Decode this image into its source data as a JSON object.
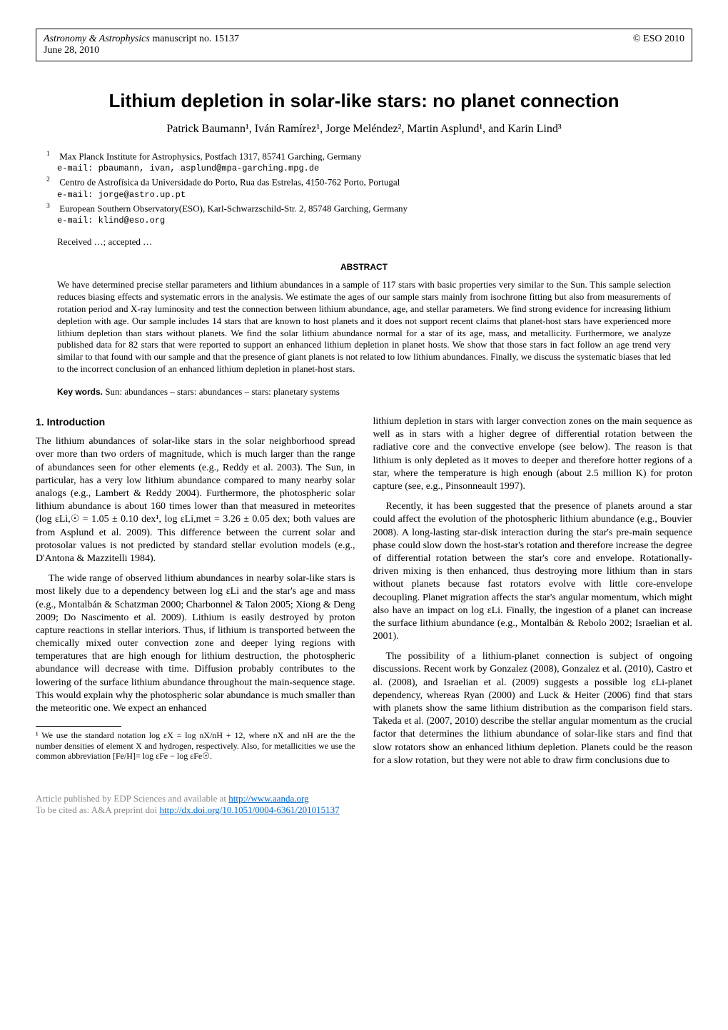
{
  "header": {
    "journal": "Astronomy & Astrophysics",
    "manuscript": " manuscript no. 15137",
    "date": "June 28, 2010",
    "copyright": "© ESO 2010"
  },
  "title": "Lithium depletion in solar-like stars: no planet connection",
  "authors": "Patrick Baumann¹, Iván Ramírez¹, Jorge Meléndez², Martin Asplund¹, and Karin Lind³",
  "affiliations": [
    {
      "num": "1",
      "text": "Max Planck Institute for Astrophysics, Postfach 1317, 85741 Garching, Germany",
      "email": "e-mail: pbaumann, ivan, asplund@mpa-garching.mpg.de"
    },
    {
      "num": "2",
      "text": "Centro de Astrofísica da Universidade do Porto, Rua das Estrelas, 4150-762 Porto, Portugal",
      "email": "e-mail: jorge@astro.up.pt"
    },
    {
      "num": "3",
      "text": "European Southern Observatory(ESO), Karl-Schwarzschild-Str. 2, 85748 Garching, Germany",
      "email": "e-mail: klind@eso.org"
    }
  ],
  "received": "Received …; accepted …",
  "abstract": {
    "header": "ABSTRACT",
    "text": "We have determined precise stellar parameters and lithium abundances in a sample of 117 stars with basic properties very similar to the Sun. This sample selection reduces biasing effects and systematic errors in the analysis. We estimate the ages of our sample stars mainly from isochrone fitting but also from measurements of rotation period and X-ray luminosity and test the connection between lithium abundance, age, and stellar parameters. We find strong evidence for increasing lithium depletion with age. Our sample includes 14 stars that are known to host planets and it does not support recent claims that planet-host stars have experienced more lithium depletion than stars without planets. We find the solar lithium abundance normal for a star of its age, mass, and metallicity. Furthermore, we analyze published data for 82 stars that were reported to support an enhanced lithium depletion in planet hosts. We show that those stars in fact follow an age trend very similar to that found with our sample and that the presence of giant planets is not related to low lithium abundances. Finally, we discuss the systematic biases that led to the incorrect conclusion of an enhanced lithium depletion in planet-host stars."
  },
  "keywords": {
    "label": "Key words.",
    "text": " Sun: abundances – stars: abundances – stars: planetary systems"
  },
  "section1": {
    "header": "1. Introduction",
    "p1": "The lithium abundances of solar-like stars in the solar neighborhood spread over more than two orders of magnitude, which is much larger than the range of abundances seen for other elements (e.g., Reddy et al. 2003). The Sun, in particular, has a very low lithium abundance compared to many nearby solar analogs (e.g., Lambert & Reddy 2004). Furthermore, the photospheric solar lithium abundance is about 160 times lower than that measured in meteorites (log εLi,☉ = 1.05 ± 0.10 dex¹, log εLi,met = 3.26 ± 0.05 dex; both values are from Asplund et al. 2009). This difference between the current solar and protosolar values is not predicted by standard stellar evolution models (e.g., D'Antona & Mazzitelli 1984).",
    "p2": "The wide range of observed lithium abundances in nearby solar-like stars is most likely due to a dependency between log εLi and the star's age and mass (e.g., Montalbán & Schatzman 2000; Charbonnel & Talon 2005; Xiong & Deng 2009; Do Nascimento et al. 2009). Lithium is easily destroyed by proton capture reactions in stellar interiors. Thus, if lithium is transported between the chemically mixed outer convection zone and deeper lying regions with temperatures that are high enough for lithium destruction, the photospheric abundance will decrease with time. Diffusion probably contributes to the lowering of the surface lithium abundance throughout the main-sequence stage. This would explain why the photospheric solar abundance is much smaller than the meteoritic one. We expect an enhanced",
    "p3": "lithium depletion in stars with larger convection zones on the main sequence as well as in stars with a higher degree of differential rotation between the radiative core and the convective envelope (see below). The reason is that lithium is only depleted as it moves to deeper and therefore hotter regions of a star, where the temperature is high enough (about 2.5 million K) for proton capture (see, e.g., Pinsonneault 1997).",
    "p4": "Recently, it has been suggested that the presence of planets around a star could affect the evolution of the photospheric lithium abundance (e.g., Bouvier 2008). A long-lasting star-disk interaction during the star's pre-main sequence phase could slow down the host-star's rotation and therefore increase the degree of differential rotation between the star's core and envelope. Rotationally-driven mixing is then enhanced, thus destroying more lithium than in stars without planets because fast rotators evolve with little core-envelope decoupling. Planet migration affects the star's angular momentum, which might also have an impact on log εLi. Finally, the ingestion of a planet can increase the surface lithium abundance (e.g., Montalbán & Rebolo 2002; Israelian et al. 2001).",
    "p5": "The possibility of a lithium-planet connection is subject of ongoing discussions. Recent work by Gonzalez (2008), Gonzalez et al. (2010), Castro et al. (2008), and Israelian et al. (2009) suggests a possible log εLi-planet dependency, whereas Ryan (2000) and Luck & Heiter (2006) find that stars with planets show the same lithium distribution as the comparison field stars. Takeda et al. (2007, 2010) describe the stellar angular momentum as the crucial factor that determines the lithium abundance of solar-like stars and find that slow rotators show an enhanced lithium depletion. Planets could be the reason for a slow rotation, but they were not able to draw firm conclusions due to"
  },
  "footnote": "¹ We use the standard notation log εX = log nX/nH + 12, where nX and nH are the the number densities of element X and hydrogen, respectively. Also, for metallicities we use the common abbreviation [Fe/H]= log εFe − log εFe☉.",
  "footer": {
    "line1": "Article published by EDP Sciences and available at ",
    "link1": "http://www.aanda.org",
    "line2": "To be cited as: A&A preprint doi ",
    "link2": "http://dx.doi.org/10.1051/0004-6361/201015137"
  }
}
